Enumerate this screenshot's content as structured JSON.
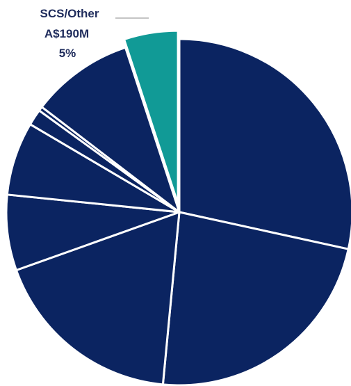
{
  "chart_data": {
    "type": "pie",
    "title": "",
    "slices": [
      {
        "label": "",
        "value": 28.2,
        "color": "#0b2461"
      },
      {
        "label": "",
        "value": 22.9,
        "color": "#0b2461"
      },
      {
        "label": "",
        "value": 17.9,
        "color": "#0b2461"
      },
      {
        "label": "",
        "value": 7.0,
        "color": "#0b2461"
      },
      {
        "label": "",
        "value": 6.8,
        "color": "#0b2461"
      },
      {
        "label": "",
        "value": 1.5,
        "color": "#0b2461"
      },
      {
        "label": "",
        "value": 0.4,
        "color": "#0b2461"
      },
      {
        "label": "",
        "value": 9.5,
        "color": "#0b2461"
      },
      {
        "label": "SCS/Other",
        "value": 5.0,
        "color": "#119a96",
        "exploded": true
      }
    ],
    "callout": {
      "name": "SCS/Other",
      "amount": "A$190M",
      "percent": "5%"
    },
    "start_angle": "12 o'clock",
    "direction": "clockwise",
    "separator_color": "#ffffff"
  }
}
